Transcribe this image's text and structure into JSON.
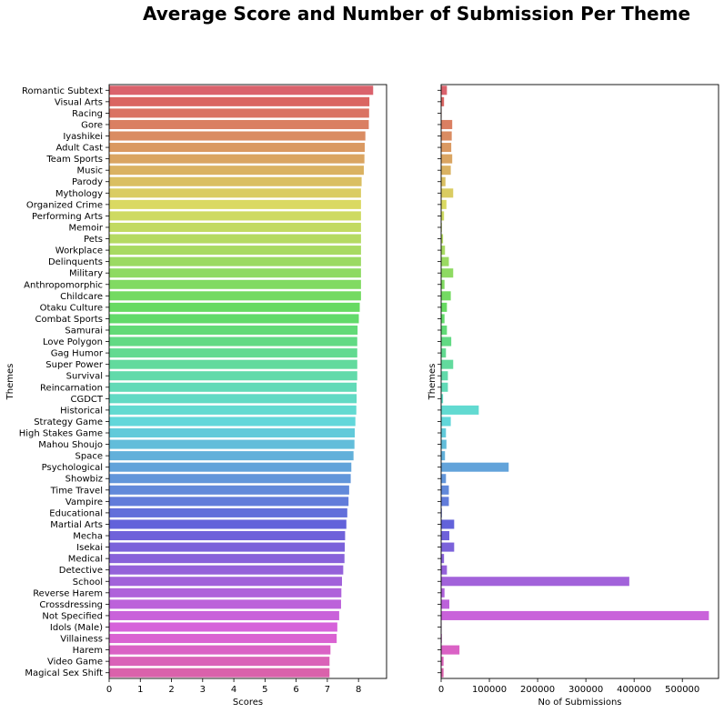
{
  "figure": {
    "suptitle": "Average Score and Number of Submission Per Theme"
  },
  "chart_data": [
    {
      "type": "bar",
      "orientation": "horizontal",
      "xlabel": "Scores",
      "ylabel": "Themes",
      "xlim": [
        0,
        8.9
      ],
      "xticks": [
        "0",
        "1",
        "2",
        "3",
        "4",
        "5",
        "6",
        "7",
        "8"
      ],
      "categories": [
        "Romantic Subtext",
        "Visual Arts",
        "Racing",
        "Gore",
        "Iyashikei",
        "Adult Cast",
        "Team Sports",
        "Music",
        "Parody",
        "Mythology",
        "Organized Crime",
        "Performing Arts",
        "Memoir",
        "Pets",
        "Workplace",
        "Delinquents",
        "Military",
        "Anthropomorphic",
        "Childcare",
        "Otaku Culture",
        "Combat Sports",
        "Samurai",
        "Love Polygon",
        "Gag Humor",
        "Super Power",
        "Survival",
        "Reincarnation",
        "CGDCT",
        "Historical",
        "Strategy Game",
        "High Stakes Game",
        "Mahou Shoujo",
        "Space",
        "Psychological",
        "Showbiz",
        "Time Travel",
        "Vampire",
        "Educational",
        "Martial Arts",
        "Mecha",
        "Isekai",
        "Medical",
        "Detective",
        "School",
        "Reverse Harem",
        "Crossdressing",
        "Not Specified",
        "Idols (Male)",
        "Villainess",
        "Harem",
        "Video Game",
        "Magical Sex Shift"
      ],
      "values": [
        8.47,
        8.35,
        8.34,
        8.33,
        8.22,
        8.2,
        8.19,
        8.17,
        8.1,
        8.08,
        8.08,
        8.08,
        8.08,
        8.08,
        8.08,
        8.08,
        8.08,
        8.08,
        8.08,
        8.04,
        8.01,
        7.97,
        7.96,
        7.96,
        7.96,
        7.96,
        7.94,
        7.94,
        7.93,
        7.9,
        7.88,
        7.87,
        7.84,
        7.77,
        7.75,
        7.7,
        7.68,
        7.64,
        7.61,
        7.57,
        7.56,
        7.55,
        7.51,
        7.47,
        7.45,
        7.44,
        7.38,
        7.32,
        7.3,
        7.1,
        7.07,
        7.07
      ]
    },
    {
      "type": "bar",
      "orientation": "horizontal",
      "xlabel": "No of Submissions",
      "ylabel": "Themes",
      "xlim": [
        0,
        575000
      ],
      "xticks": [
        "0",
        "100000",
        "200000",
        "300000",
        "400000",
        "500000"
      ],
      "categories": [
        "Romantic Subtext",
        "Visual Arts",
        "Racing",
        "Gore",
        "Iyashikei",
        "Adult Cast",
        "Team Sports",
        "Music",
        "Parody",
        "Mythology",
        "Organized Crime",
        "Performing Arts",
        "Memoir",
        "Pets",
        "Workplace",
        "Delinquents",
        "Military",
        "Anthropomorphic",
        "Childcare",
        "Otaku Culture",
        "Combat Sports",
        "Samurai",
        "Love Polygon",
        "Gag Humor",
        "Super Power",
        "Survival",
        "Reincarnation",
        "CGDCT",
        "Historical",
        "Strategy Game",
        "High Stakes Game",
        "Mahou Shoujo",
        "Space",
        "Psychological",
        "Showbiz",
        "Time Travel",
        "Vampire",
        "Educational",
        "Martial Arts",
        "Mecha",
        "Isekai",
        "Medical",
        "Detective",
        "School",
        "Reverse Harem",
        "Crossdressing",
        "Not Specified",
        "Idols (Male)",
        "Villainess",
        "Harem",
        "Video Game",
        "Magical Sex Shift"
      ],
      "values": [
        12000,
        6000,
        1000,
        23000,
        22000,
        21000,
        23000,
        20000,
        9000,
        25000,
        11000,
        6000,
        1500,
        4000,
        8000,
        16000,
        25000,
        7000,
        20000,
        12000,
        7000,
        12000,
        21000,
        10000,
        25000,
        14000,
        14000,
        4000,
        78000,
        20000,
        10000,
        11000,
        8000,
        140000,
        10000,
        16000,
        16000,
        1500,
        27000,
        17000,
        27000,
        6000,
        12000,
        390000,
        7000,
        17000,
        555000,
        1000,
        1500,
        38000,
        5000,
        5000
      ]
    }
  ]
}
